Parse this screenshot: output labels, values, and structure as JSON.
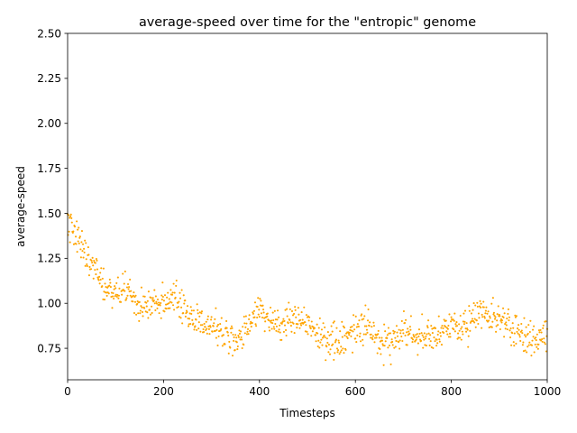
{
  "chart_data": {
    "type": "scatter",
    "title": "average-speed over time for the \"entropic\" genome",
    "xlabel": "Timesteps",
    "ylabel": "average-speed",
    "xlim": [
      0,
      1000
    ],
    "ylim": [
      0.575,
      2.5
    ],
    "xticks": [
      0,
      200,
      400,
      600,
      800,
      1000
    ],
    "xtick_labels": [
      "0",
      "200",
      "400",
      "600",
      "800",
      "1000"
    ],
    "yticks": [
      0.75,
      1.0,
      1.25,
      1.5,
      1.75,
      2.0,
      2.25,
      2.5
    ],
    "ytick_labels": [
      "0.75",
      "1.00",
      "1.25",
      "1.50",
      "1.75",
      "2.00",
      "2.25",
      "2.50"
    ],
    "marker_color": "#ffa500",
    "grid": false,
    "series": [
      {
        "x": [
          0,
          10,
          20,
          30,
          40,
          50,
          60,
          70,
          80,
          90,
          100,
          110,
          120,
          130,
          140,
          150,
          160,
          170,
          180,
          190,
          200,
          210,
          220,
          230,
          240,
          250,
          260,
          270,
          280,
          290,
          300,
          310,
          320,
          330,
          340,
          350,
          360,
          370,
          380,
          390,
          400,
          410,
          420,
          430,
          440,
          450,
          460,
          470,
          480,
          490,
          500,
          510,
          520,
          530,
          540,
          550,
          560,
          570,
          580,
          590,
          600,
          610,
          620,
          630,
          640,
          650,
          660,
          670,
          680,
          690,
          700,
          710,
          720,
          730,
          740,
          750,
          760,
          770,
          780,
          790,
          800,
          810,
          820,
          830,
          840,
          850,
          860,
          870,
          880,
          890,
          900,
          910,
          920,
          930,
          940,
          950,
          960,
          970,
          980,
          990,
          1000
        ],
        "y": [
          1.45,
          1.42,
          1.36,
          1.3,
          1.26,
          1.24,
          1.2,
          1.12,
          1.08,
          1.07,
          1.06,
          1.07,
          1.08,
          1.04,
          1.01,
          0.99,
          0.97,
          0.99,
          1.02,
          1.0,
          0.98,
          0.99,
          1.01,
          1.02,
          1.0,
          0.97,
          0.92,
          0.9,
          0.88,
          0.87,
          0.88,
          0.86,
          0.85,
          0.84,
          0.8,
          0.79,
          0.8,
          0.84,
          0.9,
          0.95,
          0.97,
          0.96,
          0.93,
          0.88,
          0.86,
          0.88,
          0.9,
          0.93,
          0.95,
          0.92,
          0.88,
          0.86,
          0.84,
          0.83,
          0.82,
          0.8,
          0.79,
          0.78,
          0.8,
          0.82,
          0.84,
          0.86,
          0.87,
          0.86,
          0.82,
          0.8,
          0.79,
          0.78,
          0.8,
          0.82,
          0.85,
          0.87,
          0.83,
          0.8,
          0.79,
          0.8,
          0.81,
          0.82,
          0.84,
          0.86,
          0.88,
          0.87,
          0.86,
          0.88,
          0.9,
          0.92,
          0.94,
          0.95,
          0.93,
          0.91,
          0.92,
          0.9,
          0.88,
          0.86,
          0.84,
          0.82,
          0.81,
          0.8,
          0.8,
          0.81,
          0.82
        ]
      }
    ]
  }
}
